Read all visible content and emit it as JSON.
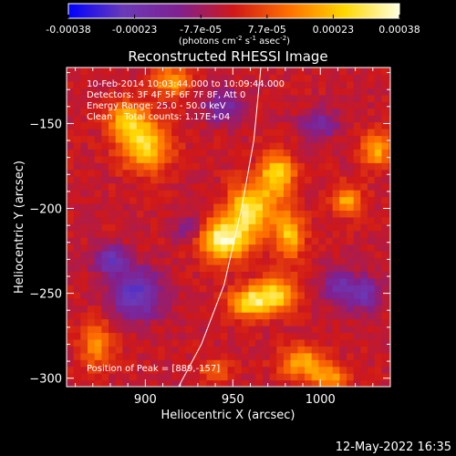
{
  "window": {
    "background": "#000000",
    "timestamp": "12-May-2022 16:35"
  },
  "colorbar": {
    "ticks": [
      "-0.00038",
      "-0.00023",
      "-7.7e-05",
      "7.7e-05",
      "0.00023",
      "0.00038"
    ],
    "units_parts": [
      "(photons cm",
      "-2",
      " s",
      "-1",
      " asec",
      "-2",
      ")"
    ]
  },
  "annotations": {
    "time_range": "10-Feb-2014 10:03:44.000 to 10:09:44.000",
    "detectors": "Detectors: 3F 4F 5F 6F 7F 8F, Att 0",
    "energy": "Energy Range: 25.0 - 50.0 keV",
    "clean": "Clean    Total counts: 1.17E+04",
    "peak": "Position of Peak = [889,-157]"
  },
  "chart_data": {
    "type": "heatmap",
    "title": "Reconstructed RHESSI Image",
    "xlabel": "Heliocentric X (arcsec)",
    "ylabel": "Heliocentric Y (arcsec)",
    "xlim": [
      855,
      1040
    ],
    "ylim": [
      -305,
      -117
    ],
    "xticks": [
      900,
      950,
      1000
    ],
    "yticks": [
      -150,
      -200,
      -250,
      -300
    ],
    "xtick_labels": [
      "900",
      "950",
      "1000"
    ],
    "ytick_labels": [
      "−150",
      "−200",
      "−250",
      "−300"
    ],
    "colormap": [
      "#0000ff",
      "#6a3ab8",
      "#802090",
      "#d01818",
      "#ff7000",
      "#ffd700",
      "#ffffe0"
    ],
    "value_range": [
      -0.00038,
      0.00038
    ],
    "limb_curve": [
      [
        966,
        -117
      ],
      [
        962,
        -160
      ],
      [
        955,
        -200
      ],
      [
        945,
        -245
      ],
      [
        932,
        -280
      ],
      [
        919,
        -305
      ]
    ],
    "peak": [
      889,
      -157
    ],
    "sources": [
      {
        "x": 945,
        "y": -218,
        "sx": 10,
        "sy": 8,
        "amp": 1.0
      },
      {
        "x": 960,
        "y": -200,
        "sx": 9,
        "sy": 10,
        "amp": 0.85
      },
      {
        "x": 975,
        "y": -180,
        "sx": 7,
        "sy": 9,
        "amp": 0.75
      },
      {
        "x": 982,
        "y": -215,
        "sx": 6,
        "sy": 10,
        "amp": 0.65
      },
      {
        "x": 960,
        "y": -255,
        "sx": 8,
        "sy": 6,
        "amp": 0.8
      },
      {
        "x": 975,
        "y": -250,
        "sx": 8,
        "sy": 7,
        "amp": 0.7
      },
      {
        "x": 990,
        "y": -290,
        "sx": 9,
        "sy": 6,
        "amp": 0.6
      },
      {
        "x": 900,
        "y": -163,
        "sx": 10,
        "sy": 10,
        "amp": 0.72
      },
      {
        "x": 890,
        "y": -148,
        "sx": 8,
        "sy": 8,
        "amp": 0.6
      },
      {
        "x": 915,
        "y": -125,
        "sx": 8,
        "sy": 6,
        "amp": 0.55
      },
      {
        "x": 1032,
        "y": -165,
        "sx": 6,
        "sy": 7,
        "amp": 0.6
      },
      {
        "x": 1015,
        "y": -195,
        "sx": 6,
        "sy": 6,
        "amp": 0.55
      },
      {
        "x": 872,
        "y": -280,
        "sx": 7,
        "sy": 10,
        "amp": 0.45
      },
      {
        "x": 1005,
        "y": -300,
        "sx": 8,
        "sy": 5,
        "amp": 0.5
      },
      {
        "x": 940,
        "y": -295,
        "sx": 6,
        "sy": 5,
        "amp": 0.35
      },
      {
        "x": 880,
        "y": -230,
        "sx": 7,
        "sy": 6,
        "amp": -0.55
      },
      {
        "x": 895,
        "y": -250,
        "sx": 10,
        "sy": 10,
        "amp": -0.7
      },
      {
        "x": 945,
        "y": -140,
        "sx": 8,
        "sy": 7,
        "amp": -0.45
      },
      {
        "x": 1025,
        "y": -250,
        "sx": 7,
        "sy": 7,
        "amp": -0.5
      },
      {
        "x": 1010,
        "y": -245,
        "sx": 6,
        "sy": 8,
        "amp": -0.45
      },
      {
        "x": 1000,
        "y": -150,
        "sx": 8,
        "sy": 6,
        "amp": -0.4
      },
      {
        "x": 925,
        "y": -212,
        "sx": 6,
        "sy": 6,
        "amp": -0.35
      }
    ]
  }
}
